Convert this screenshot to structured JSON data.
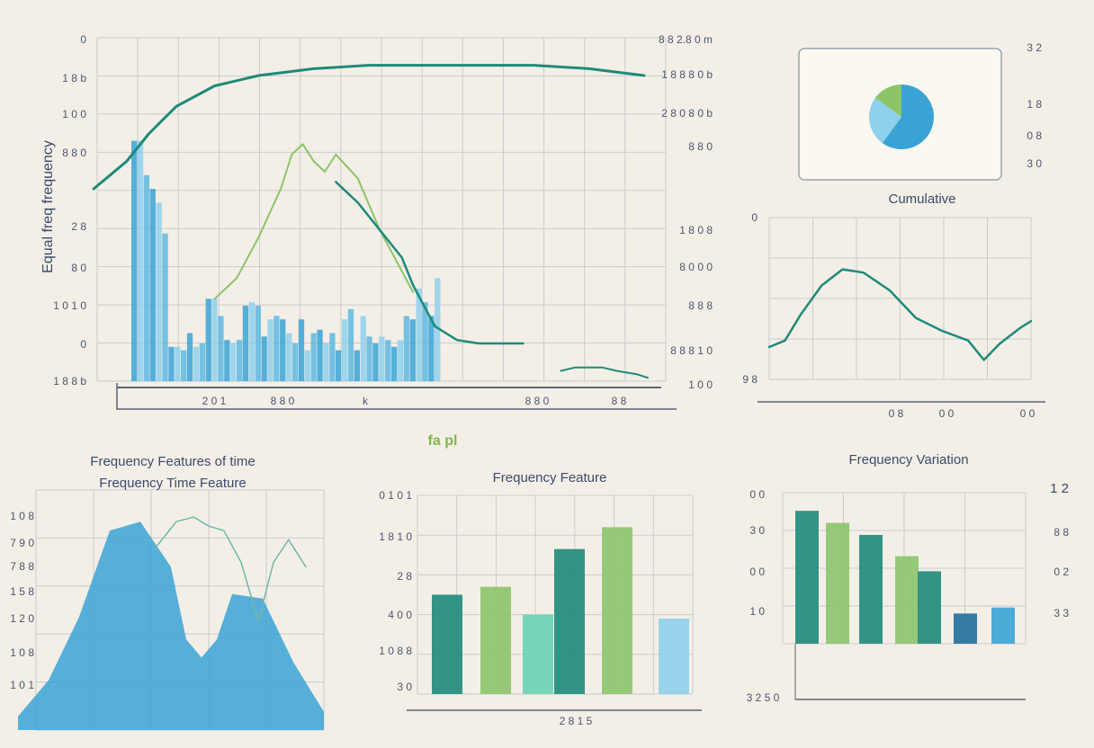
{
  "colors": {
    "background": "#f3efe6",
    "grid": "#c9cbd0",
    "teal": "#1e8a7a",
    "blue": "#3aa3d6",
    "light_blue": "#8fd0ec",
    "green": "#8cc46a",
    "mint": "#6cd2b4",
    "navy": "#1f6f9c"
  },
  "main": {
    "left_tick_labels": [
      "0",
      "1 8 b",
      "1 0 0",
      "8 8 0",
      "2 8",
      "8 0",
      "1 0 1 0",
      "0",
      "1 8 8 b"
    ],
    "right_tick_labels": [
      "8 8 2.8 0 m",
      "1 8 8 8 0 b",
      "2 8 0 8 0 b",
      "8 8 0",
      "1 8 0 8",
      "8 0 0 0",
      "8 8 8",
      "8 8 8 1 0",
      "1 0 0"
    ],
    "x_tick_labels": [
      "2 0 1",
      "8 8 0",
      "k",
      "8 8 0",
      "8 8"
    ],
    "ylabel": "Equal freq frequency",
    "logo": "fa pl"
  },
  "pie_panel": {
    "side_labels": [
      "3 2",
      "1 8",
      "0 8",
      "3 0"
    ],
    "caption": "Cumulative"
  },
  "line_small": {
    "left_labels": [
      "0",
      "9 8"
    ],
    "bottom_labels": [
      "0 8",
      "0 0",
      "0 0"
    ]
  },
  "bottom_left": {
    "title_line1": "Frequency Features of time",
    "title_line2": "Frequency Time Feature",
    "left_labels": [
      "1 0 8",
      "7 9 0",
      "7 8 8",
      "1 5 8",
      "1 2 0",
      "1 0 8",
      "1 0 1"
    ]
  },
  "bottom_mid": {
    "title": "Frequency Feature",
    "left_labels": [
      "0 1 0 1",
      "1 8 1 0",
      "2 8",
      "4 0 0",
      "1 0 8 8",
      "3 0"
    ],
    "xlabel": "2 8 1 5"
  },
  "bottom_right": {
    "title": "Frequency Variation",
    "left_labels": [
      "0 0",
      "3 0",
      "0 0",
      "1 0"
    ],
    "right_labels": [
      "1 2",
      "8 8",
      "0 2",
      "3 3"
    ],
    "bottom_label": "3 2 5 0"
  },
  "chart_data": [
    {
      "type": "bar",
      "name": "main-bars",
      "ylim": [
        0,
        100
      ],
      "values": [
        70,
        70,
        60,
        56,
        52,
        43,
        10,
        10,
        9,
        14,
        10,
        11,
        24,
        24,
        19,
        12,
        11,
        12,
        22,
        23,
        22,
        13,
        18,
        19,
        18,
        14,
        11,
        18,
        9,
        14,
        15,
        11,
        14,
        9,
        18,
        21,
        9,
        19,
        13,
        11,
        13,
        12,
        10,
        12,
        19,
        18,
        27,
        23,
        19,
        30
      ]
    },
    {
      "type": "line",
      "name": "main-teal-line",
      "ylim": [
        0,
        100
      ],
      "x": [
        0,
        3,
        6,
        10,
        15,
        22,
        30,
        40,
        50,
        60,
        70,
        80,
        90,
        100
      ],
      "y": [
        56,
        60,
        64,
        72,
        80,
        86,
        89,
        91,
        92,
        92,
        92,
        92,
        91,
        89
      ]
    },
    {
      "type": "line",
      "name": "main-green-line",
      "ylim": [
        0,
        100
      ],
      "x": [
        22,
        26,
        30,
        34,
        36,
        38,
        40,
        42,
        44,
        48,
        52,
        58
      ],
      "y": [
        24,
        30,
        42,
        56,
        66,
        69,
        64,
        61,
        66,
        59,
        44,
        26
      ]
    },
    {
      "type": "line",
      "name": "main-decline-line",
      "ylim": [
        0,
        100
      ],
      "x": [
        44,
        48,
        52,
        56,
        58,
        60,
        62,
        66,
        70,
        74,
        78
      ],
      "y": [
        58,
        52,
        44,
        36,
        28,
        22,
        16,
        12,
        11,
        11,
        11
      ]
    },
    {
      "type": "line",
      "name": "main-flat-line",
      "ylim": [
        0,
        100
      ],
      "x": [
        58,
        65,
        70,
        78,
        85,
        95,
        100
      ],
      "y": [
        3,
        4,
        4,
        4,
        3,
        2,
        1
      ]
    },
    {
      "type": "pie",
      "name": "inset-pie",
      "values": [
        60,
        25,
        15
      ]
    },
    {
      "type": "line",
      "name": "small-line",
      "ylim": [
        0,
        100
      ],
      "x": [
        0,
        6,
        12,
        20,
        28,
        36,
        46,
        56,
        66,
        76,
        82,
        88,
        96,
        100
      ],
      "y": [
        20,
        24,
        40,
        58,
        68,
        66,
        55,
        38,
        30,
        24,
        12,
        22,
        32,
        36
      ]
    },
    {
      "type": "area",
      "name": "bottom-left-area",
      "ylim": [
        0,
        100
      ],
      "x": [
        0,
        10,
        20,
        30,
        40,
        50,
        55,
        60,
        65,
        70,
        80,
        90,
        100
      ],
      "y": [
        6,
        22,
        50,
        88,
        92,
        72,
        40,
        32,
        40,
        60,
        58,
        30,
        8
      ]
    },
    {
      "type": "line",
      "name": "bottom-left-line",
      "ylim": [
        0,
        100
      ],
      "x": [
        30,
        40,
        48,
        55,
        62,
        70,
        78,
        85,
        92,
        100
      ],
      "y": [
        80,
        92,
        94,
        90,
        88,
        74,
        48,
        74,
        84,
        72
      ]
    },
    {
      "type": "bar",
      "name": "bottom-mid-bars",
      "ylim": [
        0,
        100
      ],
      "values": [
        50,
        54,
        40,
        73,
        84,
        38
      ]
    },
    {
      "type": "bar",
      "name": "bottom-right-bars",
      "ylim": [
        0,
        100
      ],
      "values": [
        88,
        80,
        72,
        58,
        48,
        20,
        24
      ]
    }
  ]
}
